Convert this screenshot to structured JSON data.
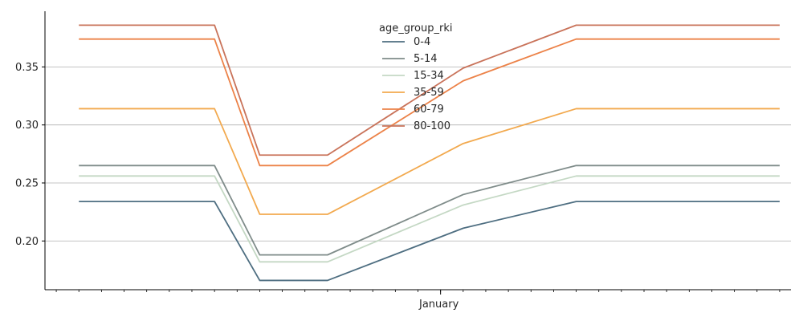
{
  "chart_data": {
    "type": "line",
    "xlabel": "January",
    "ylabel": "",
    "title": "",
    "ylim": [
      0.158,
      0.398
    ],
    "yticks": [
      0.2,
      0.25,
      0.3,
      0.35
    ],
    "ytick_labels": [
      "0.20",
      "0.25",
      "0.30",
      "0.35"
    ],
    "grid": "horizontal",
    "legend": {
      "title": "age_group_rki",
      "placement": "top-center"
    },
    "x": [
      0,
      6,
      8,
      11,
      17,
      22,
      31
    ],
    "xlim": [
      -1.5,
      31.5
    ],
    "xticks_minor": [
      -1,
      0,
      1,
      2,
      3,
      4,
      5,
      6,
      7,
      8,
      9,
      10,
      11,
      12,
      13,
      14,
      15,
      16,
      17,
      18,
      19,
      20,
      21,
      22,
      23,
      24,
      25,
      26,
      27,
      28,
      29,
      30,
      31
    ],
    "xtick_major": 16,
    "series": [
      {
        "name": "0-4",
        "color": "#4e6e81",
        "values": [
          0.234,
          0.234,
          0.166,
          0.166,
          0.211,
          0.234,
          0.234
        ]
      },
      {
        "name": "5-14",
        "color": "#7f8c8a",
        "values": [
          0.265,
          0.265,
          0.188,
          0.188,
          0.24,
          0.265,
          0.265
        ]
      },
      {
        "name": "15-34",
        "color": "#c4d8c4",
        "values": [
          0.256,
          0.256,
          0.182,
          0.182,
          0.231,
          0.256,
          0.256
        ]
      },
      {
        "name": "35-59",
        "color": "#f2a94e",
        "values": [
          0.314,
          0.314,
          0.223,
          0.223,
          0.284,
          0.314,
          0.314
        ]
      },
      {
        "name": "60-79",
        "color": "#ec8248",
        "values": [
          0.374,
          0.374,
          0.265,
          0.265,
          0.338,
          0.374,
          0.374
        ]
      },
      {
        "name": "80-100",
        "color": "#c9735a",
        "values": [
          0.386,
          0.386,
          0.274,
          0.274,
          0.349,
          0.386,
          0.386
        ]
      }
    ]
  }
}
